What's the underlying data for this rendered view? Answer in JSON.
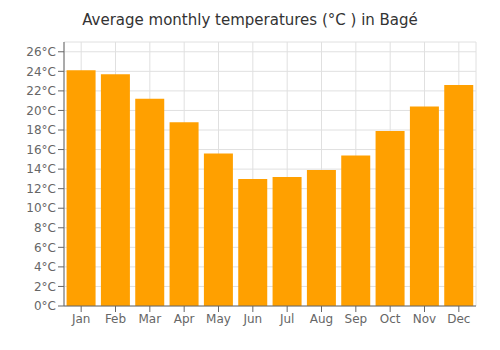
{
  "chart_data": {
    "type": "bar",
    "title": "Average monthly temperatures (°C ) in Bagé",
    "categories": [
      "Jan",
      "Feb",
      "Mar",
      "Apr",
      "May",
      "Jun",
      "Jul",
      "Aug",
      "Sep",
      "Oct",
      "Nov",
      "Dec"
    ],
    "values": [
      24.1,
      23.7,
      21.2,
      18.8,
      15.6,
      13.0,
      13.2,
      13.9,
      15.4,
      17.9,
      20.4,
      22.6
    ],
    "color": "#FFA000",
    "ylim": [
      0,
      27
    ],
    "yticks": [
      {
        "value": 0,
        "label": "0°C"
      },
      {
        "value": 2,
        "label": "2°C"
      },
      {
        "value": 4,
        "label": "4°C"
      },
      {
        "value": 6,
        "label": "6°C"
      },
      {
        "value": 8,
        "label": "8°C"
      },
      {
        "value": 10,
        "label": "10°C"
      },
      {
        "value": 12,
        "label": "12°C"
      },
      {
        "value": 14,
        "label": "14°C"
      },
      {
        "value": 16,
        "label": "16°C"
      },
      {
        "value": 18,
        "label": "18°C"
      },
      {
        "value": 20,
        "label": "20°C"
      },
      {
        "value": 22,
        "label": "22°C"
      },
      {
        "value": 24,
        "label": "24°C"
      },
      {
        "value": 26,
        "label": "26°C"
      }
    ],
    "grid": true
  }
}
